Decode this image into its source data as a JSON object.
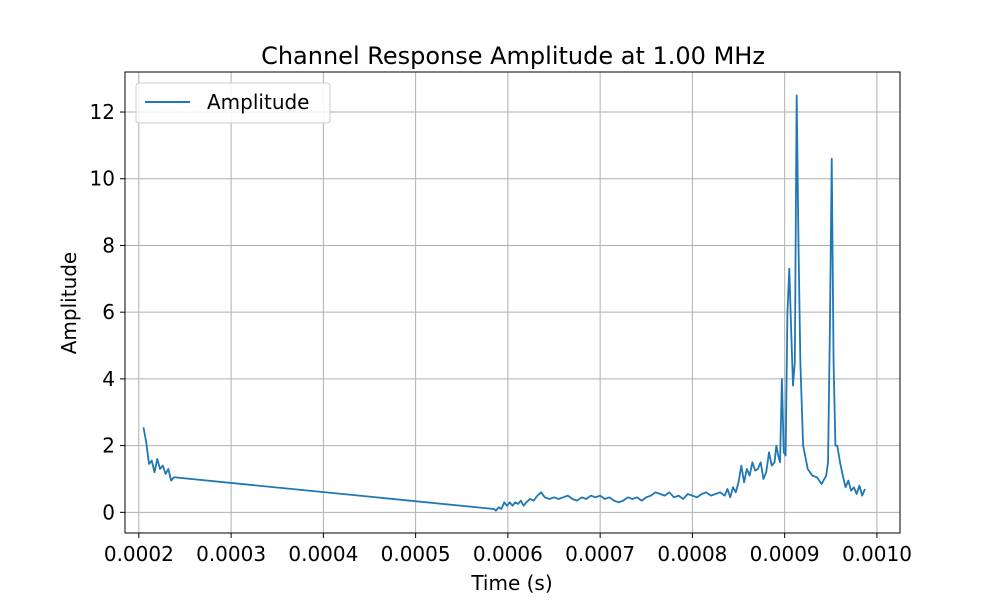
{
  "chart_data": {
    "type": "line",
    "title": "Channel Response Amplitude at 1.00 MHz",
    "xlabel": "Time (s)",
    "ylabel": "Amplitude",
    "xlim": [
      0.000185,
      0.001025
    ],
    "ylim": [
      -0.62,
      13.2
    ],
    "x_ticks": [
      0.0002,
      0.0003,
      0.0004,
      0.0005,
      0.0006,
      0.0007,
      0.0008,
      0.0009,
      0.001
    ],
    "x_tick_labels": [
      "0.0002",
      "0.0003",
      "0.0004",
      "0.0005",
      "0.0006",
      "0.0007",
      "0.0008",
      "0.0009",
      "0.0010"
    ],
    "y_ticks": [
      0,
      2,
      4,
      6,
      8,
      10,
      12
    ],
    "y_tick_labels": [
      "0",
      "2",
      "4",
      "6",
      "8",
      "10",
      "12"
    ],
    "grid": true,
    "legend_position": "top-left",
    "colors": {
      "series": "#1f77b4",
      "grid": "#b0b0b0",
      "axes": "#000000"
    },
    "series": [
      {
        "name": "Amplitude",
        "x": [
          0.000205,
          0.000208,
          0.000211,
          0.000214,
          0.000217,
          0.00022,
          0.000223,
          0.000226,
          0.000229,
          0.000232,
          0.000235,
          0.000238,
          0.000585,
          0.000587,
          0.00059,
          0.000593,
          0.000596,
          0.000599,
          0.000602,
          0.000605,
          0.000608,
          0.000611,
          0.000614,
          0.000617,
          0.00062,
          0.000624,
          0.000628,
          0.000632,
          0.000636,
          0.00064,
          0.000645,
          0.00065,
          0.000655,
          0.00066,
          0.000665,
          0.00067,
          0.000675,
          0.00068,
          0.000685,
          0.00069,
          0.000695,
          0.0007,
          0.000705,
          0.00071,
          0.000715,
          0.00072,
          0.000725,
          0.00073,
          0.000735,
          0.00074,
          0.000745,
          0.00075,
          0.000755,
          0.00076,
          0.000765,
          0.00077,
          0.000775,
          0.00078,
          0.000785,
          0.00079,
          0.000795,
          0.0008,
          0.000805,
          0.00081,
          0.000815,
          0.00082,
          0.000825,
          0.00083,
          0.000835,
          0.000838,
          0.000841,
          0.000844,
          0.000847,
          0.00085,
          0.000853,
          0.000856,
          0.000859,
          0.000862,
          0.000865,
          0.000868,
          0.000871,
          0.000874,
          0.000877,
          0.00088,
          0.000883,
          0.000886,
          0.000889,
          0.000891,
          0.000893,
          0.000895,
          0.000897,
          0.000899,
          0.000901,
          0.000903,
          0.000905,
          0.000907,
          0.000909,
          0.000911,
          0.000913,
          0.000915,
          0.000917,
          0.00092,
          0.000925,
          0.00093,
          0.000935,
          0.00094,
          0.000945,
          0.000947,
          0.000949,
          0.000951,
          0.000953,
          0.000955,
          0.000957,
          0.00096,
          0.000963,
          0.000966,
          0.000969,
          0.000972,
          0.000975,
          0.000978,
          0.000981,
          0.000984,
          0.000987
        ],
        "values": [
          2.55,
          2.1,
          1.45,
          1.55,
          1.2,
          1.6,
          1.3,
          1.4,
          1.15,
          1.3,
          0.95,
          1.05,
          0.1,
          0.05,
          0.15,
          0.1,
          0.3,
          0.2,
          0.3,
          0.2,
          0.3,
          0.25,
          0.35,
          0.2,
          0.3,
          0.4,
          0.35,
          0.5,
          0.6,
          0.45,
          0.4,
          0.45,
          0.4,
          0.45,
          0.5,
          0.4,
          0.35,
          0.45,
          0.4,
          0.5,
          0.45,
          0.5,
          0.4,
          0.45,
          0.35,
          0.3,
          0.35,
          0.45,
          0.4,
          0.45,
          0.35,
          0.45,
          0.5,
          0.6,
          0.55,
          0.5,
          0.6,
          0.45,
          0.5,
          0.4,
          0.55,
          0.5,
          0.45,
          0.55,
          0.6,
          0.5,
          0.55,
          0.6,
          0.5,
          0.7,
          0.45,
          0.75,
          0.6,
          0.9,
          1.4,
          0.9,
          1.3,
          1.1,
          1.5,
          1.25,
          1.3,
          1.5,
          1.0,
          1.2,
          1.8,
          1.4,
          1.5,
          2.0,
          1.7,
          1.5,
          4.0,
          1.8,
          1.7,
          6.0,
          7.3,
          5.5,
          3.8,
          4.5,
          12.5,
          8.0,
          4.5,
          2.0,
          1.3,
          1.1,
          1.05,
          0.85,
          1.1,
          1.5,
          5.5,
          10.6,
          4.5,
          2.0,
          2.0,
          1.5,
          1.1,
          0.75,
          0.95,
          0.65,
          0.75,
          0.55,
          0.8,
          0.5,
          0.7
        ]
      }
    ]
  }
}
